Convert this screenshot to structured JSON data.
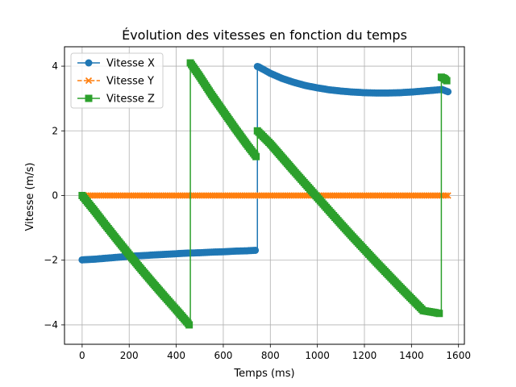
{
  "chart_data": {
    "type": "line",
    "title": "Évolution des vitesses en fonction du temps",
    "xlabel": "Temps (ms)",
    "ylabel": "Vitesse (m/s)",
    "xlim": [
      -75,
      1625
    ],
    "ylim": [
      -4.6,
      4.6
    ],
    "xticks": [
      0,
      200,
      400,
      600,
      800,
      1000,
      1200,
      1400,
      1600
    ],
    "yticks": [
      -4,
      -2,
      0,
      2,
      4
    ],
    "xtick_labels": [
      "0",
      "200",
      "400",
      "600",
      "800",
      "1000",
      "1200",
      "1400",
      "1600"
    ],
    "ytick_labels": [
      "−4",
      "−2",
      "0",
      "2",
      "4"
    ],
    "grid": true,
    "legend_position": "top-left",
    "series": [
      {
        "name": "Vitesse X",
        "color": "#1f77b4",
        "marker": "circle",
        "linestyle": "solid",
        "x": [
          0,
          50,
          100,
          150,
          200,
          250,
          300,
          350,
          400,
          450,
          500,
          550,
          600,
          650,
          700,
          745,
          745,
          750,
          800,
          850,
          900,
          950,
          1000,
          1050,
          1100,
          1150,
          1200,
          1250,
          1300,
          1350,
          1400,
          1450,
          1500,
          1530,
          1555
        ],
        "y": [
          -1.99,
          -1.97,
          -1.94,
          -1.91,
          -1.88,
          -1.86,
          -1.84,
          -1.82,
          -1.8,
          -1.78,
          -1.77,
          -1.75,
          -1.74,
          -1.72,
          -1.71,
          -1.69,
          3.99,
          3.98,
          3.78,
          3.62,
          3.5,
          3.4,
          3.33,
          3.27,
          3.23,
          3.2,
          3.18,
          3.17,
          3.17,
          3.18,
          3.2,
          3.23,
          3.26,
          3.28,
          3.21
        ]
      },
      {
        "name": "Vitesse Y",
        "color": "#ff7f0e",
        "marker": "x",
        "linestyle": "dashed",
        "x": [
          0,
          200,
          400,
          600,
          800,
          1000,
          1200,
          1400,
          1555
        ],
        "y": [
          0,
          0,
          0,
          0,
          0,
          0,
          0,
          0,
          0
        ]
      },
      {
        "name": "Vitesse Z",
        "color": "#2ca02c",
        "marker": "square",
        "linestyle": "solid",
        "x": [
          0,
          50,
          100,
          150,
          200,
          250,
          300,
          350,
          400,
          450,
          460,
          460,
          500,
          550,
          600,
          650,
          700,
          745,
          745,
          800,
          850,
          900,
          950,
          1000,
          1050,
          1100,
          1150,
          1200,
          1250,
          1300,
          1350,
          1400,
          1450,
          1500,
          1527,
          1527,
          1540,
          1550
        ],
        "y": [
          0,
          -0.45,
          -0.92,
          -1.38,
          -1.83,
          -2.27,
          -2.7,
          -3.12,
          -3.53,
          -3.95,
          -4.05,
          4.1,
          3.68,
          3.12,
          2.6,
          2.08,
          1.58,
          1.15,
          2.0,
          1.6,
          1.18,
          0.76,
          0.35,
          -0.06,
          -0.47,
          -0.88,
          -1.28,
          -1.67,
          -2.06,
          -2.44,
          -2.82,
          -3.19,
          -3.56,
          -3.62,
          -3.66,
          3.66,
          3.62,
          3.55
        ]
      }
    ]
  }
}
